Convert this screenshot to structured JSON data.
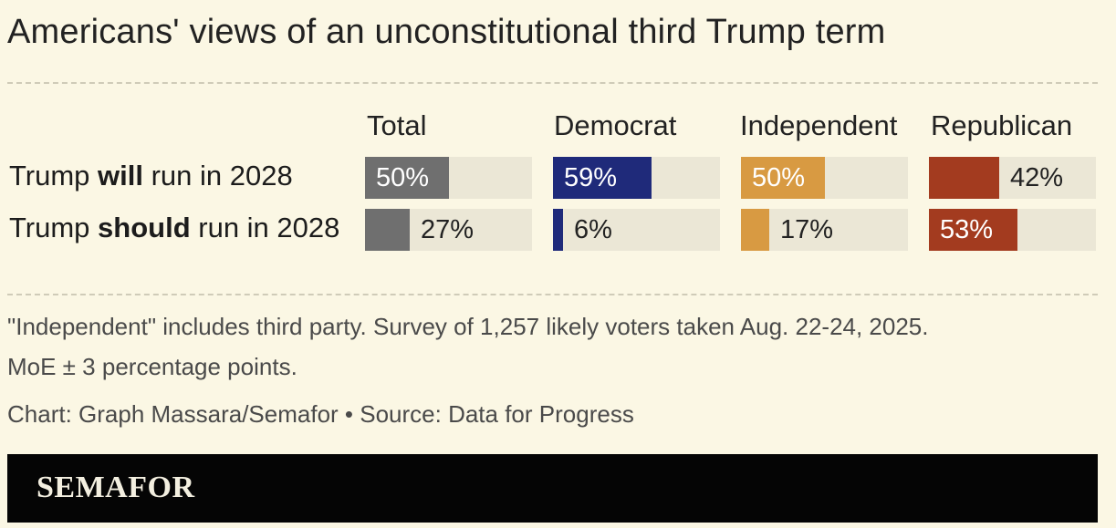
{
  "title": "Americans' views of an unconstitutional third Trump term",
  "chart_data": {
    "type": "bar",
    "title": "Americans' views of an unconstitutional third Trump term",
    "categories": [
      "Total",
      "Democrat",
      "Independent",
      "Republican"
    ],
    "series": [
      {
        "name_prefix": "Trump ",
        "name_bold": "will",
        "name_suffix": " run in 2028",
        "values": [
          50,
          59,
          50,
          42
        ]
      },
      {
        "name_prefix": "Trump ",
        "name_bold": "should",
        "name_suffix": " run in 2028",
        "values": [
          27,
          6,
          17,
          53
        ]
      }
    ],
    "ylim": [
      0,
      100
    ],
    "unit": "%"
  },
  "colors": {
    "Total": "#6f6f6f",
    "Democrat": "#1f2a7a",
    "Independent": "#d89a42",
    "Republican": "#a33b1f"
  },
  "notes": {
    "line1": "\"Independent\" includes third party. Survey of 1,257 likely voters taken Aug. 22-24, 2025.",
    "line2": "MoE ± 3 percentage points.",
    "credit": "Chart: Graph Massara/Semafor • Source: Data for Progress"
  },
  "footer": {
    "logo": "SEMAFOR"
  }
}
